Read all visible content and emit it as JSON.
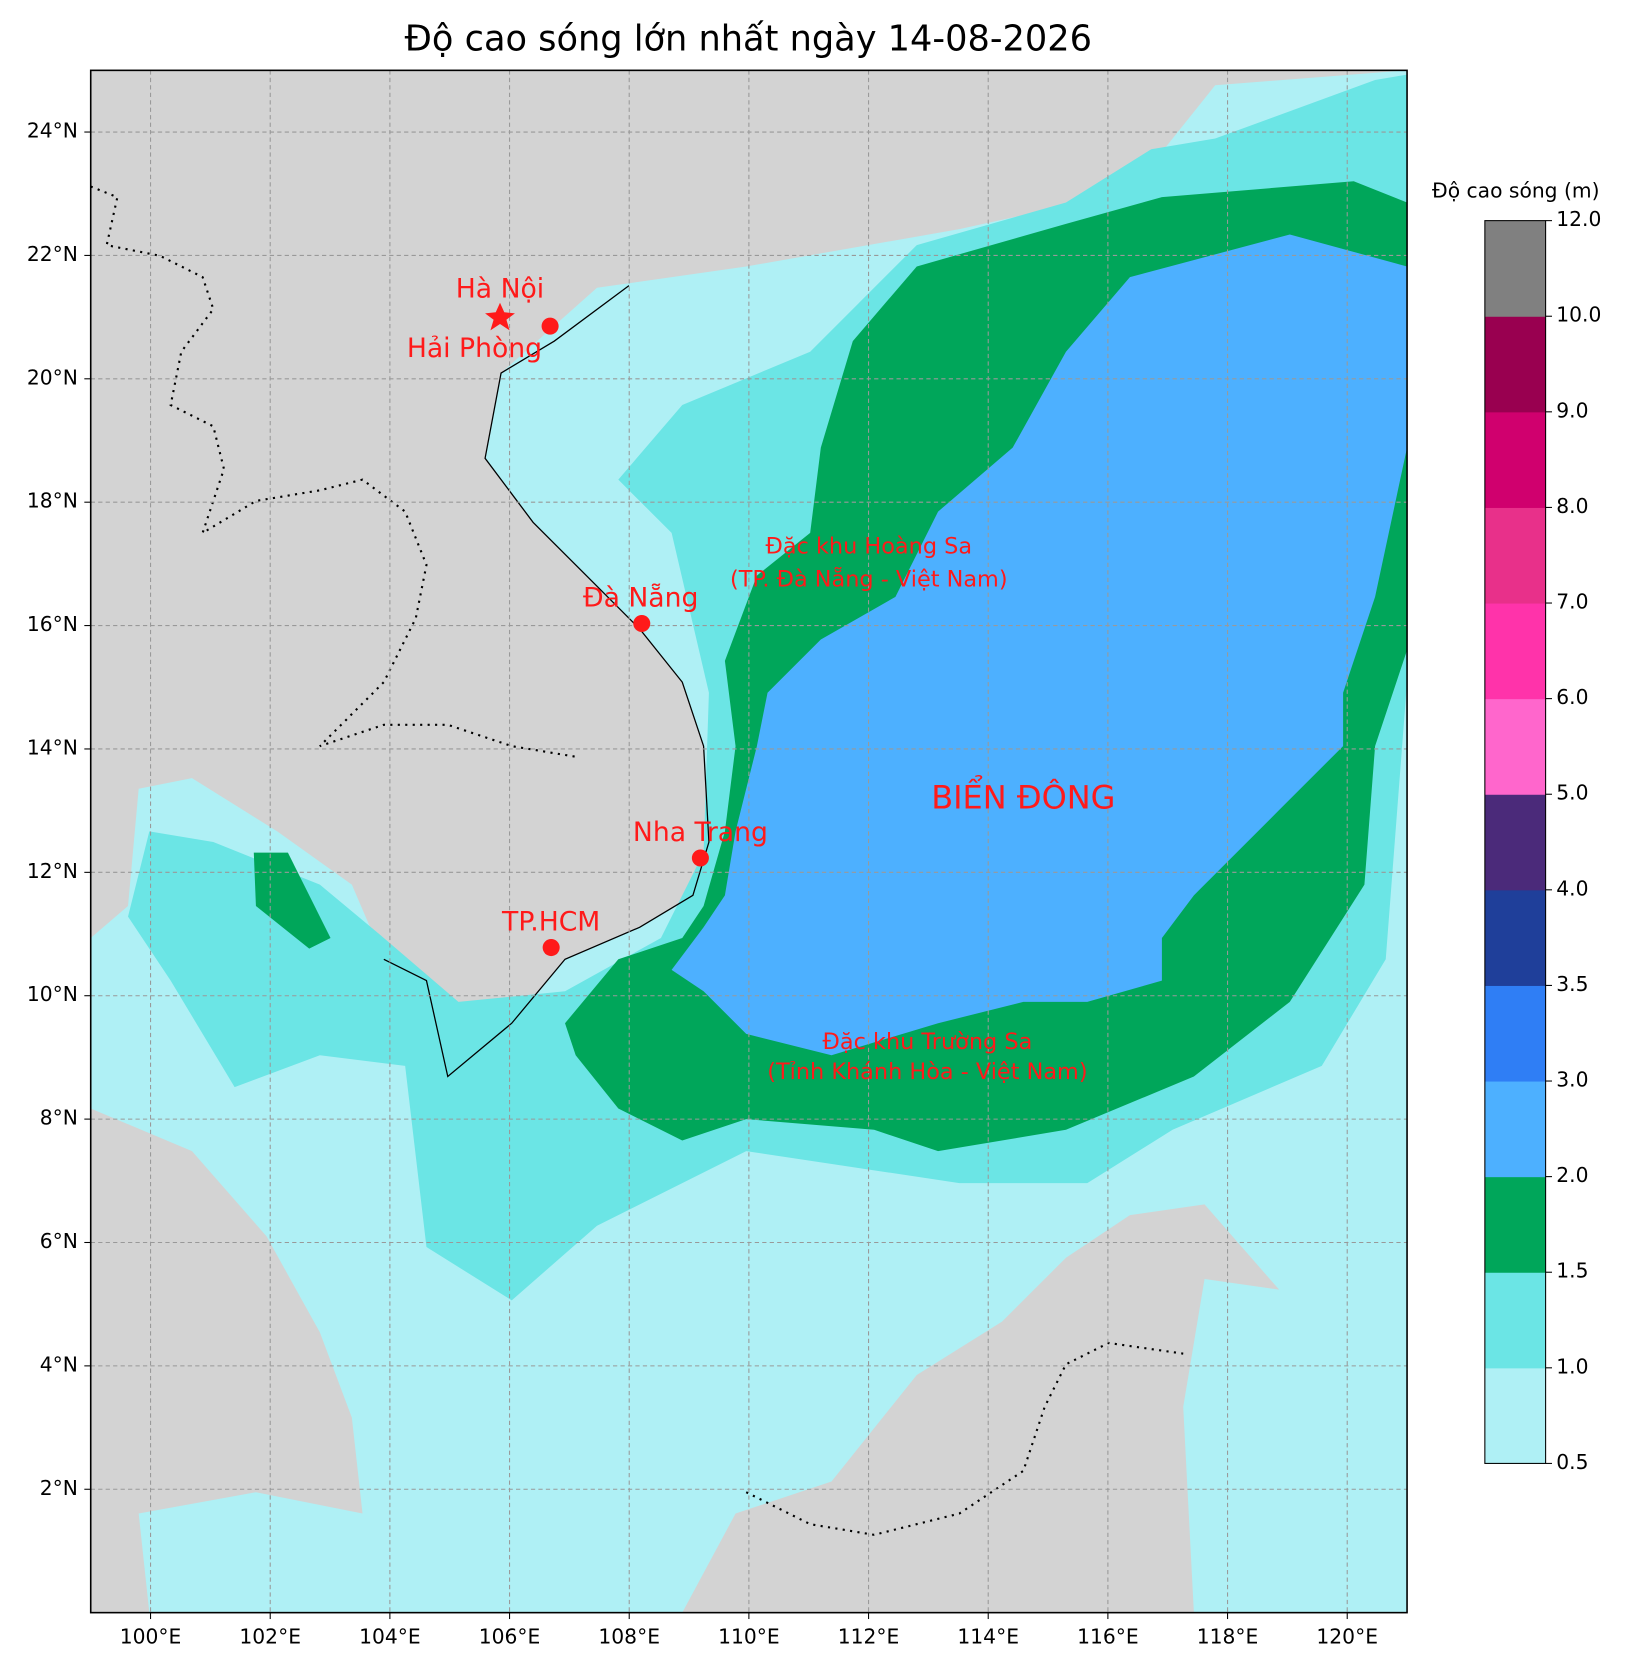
{
  "title": "Độ cao sóng lớn nhất ngày 14-08-2026",
  "map": {
    "xlim": [
      99,
      121
    ],
    "ylim": [
      0,
      25
    ],
    "xticks": [
      {
        "value": 100,
        "label": "100°E"
      },
      {
        "value": 102,
        "label": "102°E"
      },
      {
        "value": 104,
        "label": "104°E"
      },
      {
        "value": 106,
        "label": "106°E"
      },
      {
        "value": 108,
        "label": "108°E"
      },
      {
        "value": 110,
        "label": "110°E"
      },
      {
        "value": 112,
        "label": "112°E"
      },
      {
        "value": 114,
        "label": "114°E"
      },
      {
        "value": 116,
        "label": "116°E"
      },
      {
        "value": 118,
        "label": "118°E"
      },
      {
        "value": 120,
        "label": "120°E"
      }
    ],
    "yticks": [
      {
        "value": 2,
        "label": "2°N"
      },
      {
        "value": 4,
        "label": "4°N"
      },
      {
        "value": 6,
        "label": "6°N"
      },
      {
        "value": 8,
        "label": "8°N"
      },
      {
        "value": 10,
        "label": "10°N"
      },
      {
        "value": 12,
        "label": "12°N"
      },
      {
        "value": 14,
        "label": "14°N"
      },
      {
        "value": 16,
        "label": "16°N"
      },
      {
        "value": 18,
        "label": "18°N"
      },
      {
        "value": 20,
        "label": "20°N"
      },
      {
        "value": 22,
        "label": "22°N"
      },
      {
        "value": 24,
        "label": "24°N"
      }
    ],
    "grid": true
  },
  "places": [
    "Hà Nội",
    "Hải Phòng",
    "Đà Nẵng",
    "Nha Trang",
    "TP.HCM"
  ],
  "annotations": [
    "Đặc khu Hoàng Sa",
    "(TP. Đà Nẵng - Việt Nam)",
    "Đặc khu Trường Sa",
    "(Tỉnh Khánh Hòa - Việt Nam)",
    "BIỂN ĐÔNG"
  ],
  "colorbar": {
    "title": "Độ cao sóng (m)",
    "ticks": [
      0.5,
      {
        "value": 1,
        "label": "1.0"
      },
      1.5,
      {
        "value": 2,
        "label": "2.0"
      },
      {
        "value": 3,
        "label": "3.0"
      },
      3.5,
      {
        "value": 4,
        "label": "4.0"
      },
      {
        "value": 5,
        "label": "5.0"
      },
      {
        "value": 6,
        "label": "6.0"
      },
      {
        "value": 7,
        "label": "7.0"
      },
      {
        "value": 8,
        "label": "8.0"
      },
      {
        "value": 9,
        "label": "9.0"
      },
      {
        "value": 10,
        "label": "10.0"
      },
      {
        "value": 12,
        "label": "12.0"
      }
    ],
    "colors": [
      "#aff0f5",
      "#6be5e5",
      "#00a65a",
      "#4db0ff",
      "#2f7ef5",
      "#1f3f9a",
      "#4b2a7a",
      "#ff66cc",
      "#ff33aa",
      "#e8308a",
      "#d0006e",
      "#990050",
      "#808080"
    ]
  }
}
